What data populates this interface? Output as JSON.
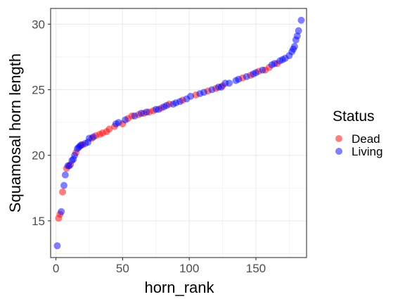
{
  "chart_data": {
    "type": "scatter",
    "title": "",
    "xlabel": "horn_rank",
    "ylabel": "Squamosal horn length",
    "xlim": [
      -4,
      188
    ],
    "ylim": [
      12.2,
      31.2
    ],
    "x_ticks": [
      0,
      50,
      100,
      150
    ],
    "y_ticks": [
      15,
      20,
      25,
      30
    ],
    "grid": true,
    "legend_position": "right",
    "legend": {
      "title": "Status",
      "entries": [
        {
          "label": "Dead",
          "color": "#ff0000"
        },
        {
          "label": "Living",
          "color": "#0000ff"
        }
      ]
    },
    "point_alpha": 0.5,
    "series": [
      {
        "name": "Dead",
        "color": "#ff0000",
        "x": [
          2,
          3,
          5,
          8,
          11,
          15,
          20,
          27,
          30,
          33,
          35,
          38,
          40,
          44,
          50,
          54,
          57,
          62,
          66,
          70,
          73,
          79,
          85,
          95,
          105,
          114,
          120,
          125,
          140,
          146,
          152,
          157,
          160,
          166
        ],
        "y": [
          15.2,
          15.5,
          17.2,
          19.0,
          19.3,
          20.2,
          20.8,
          21.3,
          21.5,
          21.6,
          21.7,
          21.8,
          22.0,
          22.2,
          22.4,
          22.8,
          23.0,
          23.1,
          23.2,
          23.3,
          23.4,
          23.6,
          23.9,
          24.2,
          24.6,
          24.9,
          25.1,
          25.3,
          25.9,
          26.1,
          26.4,
          26.5,
          26.7,
          27.0
        ]
      },
      {
        "name": "Living",
        "color": "#0000ff",
        "x": [
          1,
          4,
          6,
          7,
          9,
          10,
          12,
          13,
          14,
          16,
          17,
          18,
          19,
          22,
          24,
          25,
          28,
          45,
          47,
          52,
          59,
          64,
          68,
          75,
          77,
          81,
          83,
          88,
          90,
          93,
          98,
          101,
          108,
          111,
          117,
          122,
          124,
          127,
          130,
          135,
          137,
          143,
          148,
          150,
          155,
          162,
          164,
          168,
          170,
          172,
          175,
          177,
          178,
          179,
          180,
          181,
          182,
          184
        ],
        "y": [
          13.1,
          15.7,
          17.7,
          18.5,
          19.2,
          19.2,
          19.6,
          19.7,
          20.0,
          20.5,
          20.6,
          20.7,
          20.8,
          20.9,
          21.0,
          21.3,
          21.4,
          22.4,
          22.5,
          22.7,
          23.0,
          23.2,
          23.3,
          23.5,
          23.5,
          23.7,
          23.8,
          23.9,
          24.0,
          24.1,
          24.3,
          24.5,
          24.7,
          24.8,
          25.0,
          25.2,
          25.2,
          25.5,
          25.5,
          25.7,
          25.8,
          26.0,
          26.2,
          26.3,
          26.5,
          26.9,
          27.0,
          27.2,
          27.3,
          27.4,
          27.6,
          27.9,
          28.1,
          28.3,
          28.8,
          29.1,
          29.5,
          30.3
        ]
      }
    ]
  }
}
